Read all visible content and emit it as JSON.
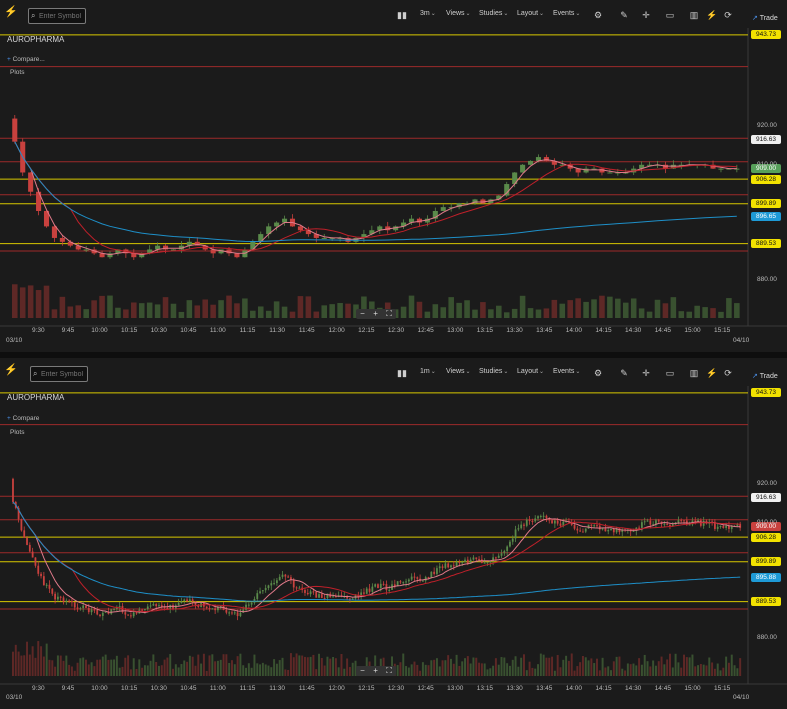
{
  "panels": [
    {
      "toolbar": {
        "symbol_placeholder": "Enter Symbol",
        "interval": "3m",
        "views": "Views",
        "studies": "Studies",
        "layout": "Layout",
        "events": "Events",
        "trade": "Trade"
      },
      "symbol": "AUROPHARMA",
      "compare_label": "Compare...",
      "plots_label": "Plots",
      "price_axis": [
        "920.00",
        "910.00",
        "880.00"
      ],
      "price_tags": [
        {
          "label": "943.73",
          "style": "yellow"
        },
        {
          "label": "916.63",
          "style": "white"
        },
        {
          "label": "909.00",
          "style": "green"
        },
        {
          "label": "906.28",
          "style": "yellow"
        },
        {
          "label": "899.89",
          "style": "yellow"
        },
        {
          "label": "896.65",
          "style": "blue"
        },
        {
          "label": "889.53",
          "style": "yellow"
        }
      ],
      "time_axis": [
        "9:30",
        "9:45",
        "10:00",
        "10:15",
        "10:30",
        "10:45",
        "11:00",
        "11:15",
        "11:30",
        "11:45",
        "12:00",
        "12:15",
        "12:30",
        "12:45",
        "13:00",
        "13:15",
        "13:30",
        "13:45",
        "14:00",
        "14:15",
        "14:30",
        "14:45",
        "15:00",
        "15:15"
      ],
      "date_left": "03/10",
      "date_right": "04/10"
    },
    {
      "toolbar": {
        "symbol_placeholder": "Enter Symbol",
        "interval": "1m",
        "views": "Views",
        "studies": "Studies",
        "layout": "Layout",
        "events": "Events",
        "trade": "Trade"
      },
      "symbol": "AUROPHARMA",
      "compare_label": "Compare",
      "plots_label": "Plots",
      "price_axis": [
        "920.00",
        "910.00",
        "880.00"
      ],
      "price_tags": [
        {
          "label": "943.73",
          "style": "yellow"
        },
        {
          "label": "916.63",
          "style": "white"
        },
        {
          "label": "909.00",
          "style": "red"
        },
        {
          "label": "906.28",
          "style": "yellow"
        },
        {
          "label": "899.89",
          "style": "yellow"
        },
        {
          "label": "895.88",
          "style": "blue"
        },
        {
          "label": "889.53",
          "style": "yellow"
        }
      ],
      "time_axis": [
        "9:30",
        "9:45",
        "10:00",
        "10:15",
        "10:30",
        "10:45",
        "11:00",
        "11:15",
        "11:30",
        "11:45",
        "12:00",
        "12:15",
        "12:30",
        "12:45",
        "13:00",
        "13:15",
        "13:30",
        "13:45",
        "14:00",
        "14:15",
        "14:30",
        "14:45",
        "15:00",
        "15:15"
      ],
      "date_left": "03/10",
      "date_right": "04/10"
    }
  ],
  "colors": {
    "up": "#5a8a4a",
    "down": "#c9413e",
    "level_red": "#9c2a2a",
    "level_yellow": "#d8c800",
    "vwap": "#1e8fc8",
    "ma_fast": "#e07a8a",
    "ma_slow": "#c0202a"
  },
  "chart_data": [
    {
      "type": "candlestick",
      "interval": "3m",
      "ylim": [
        878,
        945
      ],
      "levels_yellow": [
        943.73,
        906.28,
        899.89,
        889.53
      ],
      "levels_red": [
        935.5,
        916.9,
        910.8,
        902.2,
        887.6
      ],
      "close": [
        916,
        908,
        903,
        898,
        894,
        891,
        890,
        889,
        888,
        888,
        887,
        886,
        887,
        888,
        887,
        886,
        887,
        888,
        889,
        888,
        888,
        889,
        890,
        889,
        888,
        887,
        888,
        887,
        886,
        888,
        890,
        892,
        894,
        895,
        896,
        894,
        893,
        892,
        891,
        891,
        891,
        891,
        890,
        891,
        892,
        893,
        894,
        893,
        894,
        895,
        896,
        895,
        896,
        898,
        899,
        899,
        900,
        900,
        901,
        900,
        901,
        902,
        905,
        908,
        910,
        911,
        912,
        911,
        910,
        910,
        909,
        908,
        909,
        909,
        908,
        908,
        908,
        908,
        909,
        910,
        910,
        910,
        909,
        910,
        910,
        910,
        910,
        910,
        909,
        909,
        909,
        909
      ],
      "vwap_end": 896.65
    },
    {
      "type": "candlestick",
      "interval": "1m",
      "ylim": [
        878,
        945
      ],
      "levels_yellow": [
        943.73,
        906.28,
        899.89,
        889.53
      ],
      "levels_red": [
        935.5,
        916.9,
        910.8,
        902.2,
        887.6
      ],
      "vwap_end": 895.88
    }
  ]
}
